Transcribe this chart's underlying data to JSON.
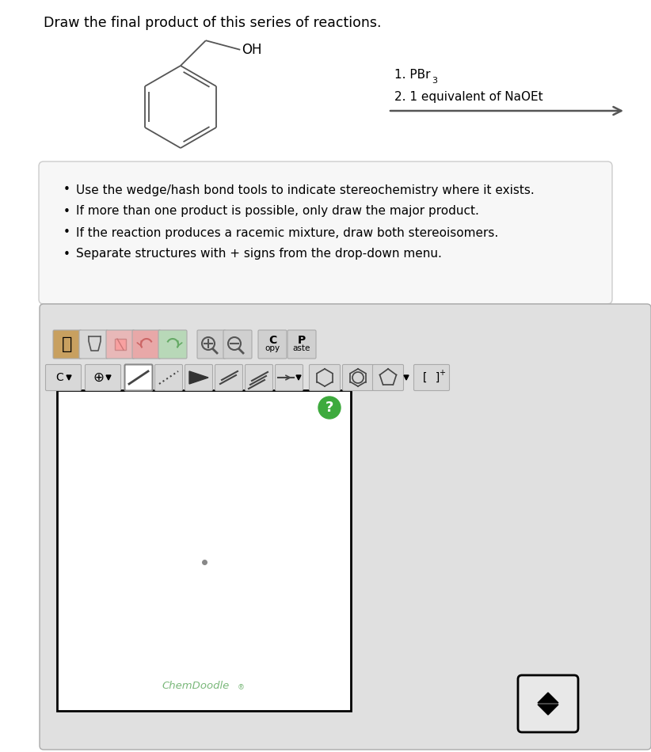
{
  "title": "Draw the final product of this series of reactions.",
  "title_fontsize": 12.5,
  "background_color": "#ffffff",
  "reaction_label_1": "1. PBr",
  "reaction_label_1_sub": "3",
  "reaction_label_2": "2. 1 equivalent of NaOEt",
  "bullet_points": [
    "Use the wedge/hash bond tools to indicate stereochemistry where it exists.",
    "If more than one product is possible, only draw the major product.",
    "If the reaction produces a racemic mixture, draw both stereoisomers.",
    "Separate structures with + signs from the drop-down menu."
  ],
  "chemdoodle_text": "ChemDoodle",
  "chemdoodle_reg": "®",
  "chemdoodle_color": "#7ab87a",
  "question_mark_bg": "#3daa3d",
  "toolbar_bg": "#e0e0e0",
  "toolbar_border": "#b0b0b0",
  "canvas_bg": "#ffffff",
  "dot_color": "#888888",
  "scroll_bg": "#e8e8e8"
}
